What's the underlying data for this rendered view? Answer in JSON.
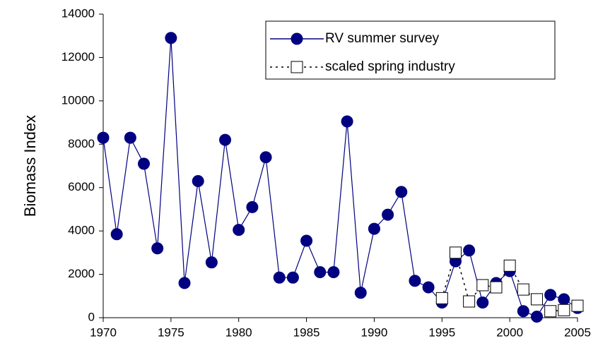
{
  "chart_data": {
    "type": "line",
    "y_label": "Biomass Index",
    "x": [
      1970,
      1971,
      1972,
      1973,
      1974,
      1975,
      1976,
      1977,
      1978,
      1979,
      1980,
      1981,
      1982,
      1983,
      1984,
      1985,
      1986,
      1987,
      1988,
      1989,
      1990,
      1991,
      1992,
      1993,
      1994,
      1995,
      1996,
      1997,
      1998,
      1999,
      2000,
      2001,
      2002,
      2003,
      2004,
      2005
    ],
    "series": [
      {
        "name": "RV summer survey",
        "color": "#000080",
        "marker": "circle",
        "line_style": "solid",
        "values": [
          8300,
          3850,
          8300,
          7100,
          3200,
          12900,
          1600,
          6300,
          2550,
          8200,
          4050,
          5100,
          7400,
          1850,
          1850,
          3550,
          2100,
          2100,
          9050,
          1150,
          4100,
          4750,
          5800,
          1700,
          1400,
          700,
          2600,
          3100,
          700,
          1600,
          2150,
          300,
          50,
          1050,
          850,
          450
        ]
      },
      {
        "name": "scaled spring industry",
        "color": "#000000",
        "marker": "square",
        "line_style": "dotted",
        "values": [
          null,
          null,
          null,
          null,
          null,
          null,
          null,
          null,
          null,
          null,
          null,
          null,
          null,
          null,
          null,
          null,
          null,
          null,
          null,
          null,
          null,
          null,
          null,
          null,
          null,
          900,
          3000,
          750,
          1500,
          1400,
          2400,
          1300,
          850,
          300,
          350,
          550
        ]
      }
    ],
    "xlim": [
      1970,
      2005
    ],
    "xticks": [
      1970,
      1975,
      1980,
      1985,
      1990,
      1995,
      2000,
      2005
    ],
    "ylim": [
      0,
      14000
    ],
    "yticks": [
      0,
      2000,
      4000,
      6000,
      8000,
      10000,
      12000,
      14000
    ],
    "grid": false,
    "legend": "top-right"
  }
}
